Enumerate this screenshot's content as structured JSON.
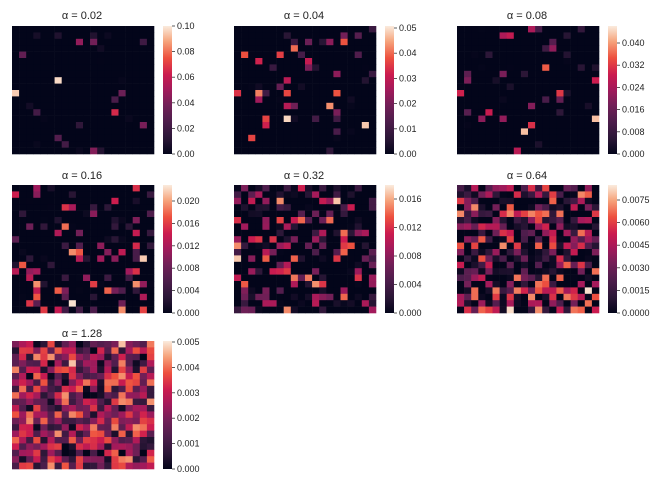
{
  "figure": {
    "panels": [
      {
        "title": "α = 0.02",
        "ticks": [
          "0.10",
          "0.08",
          "0.06",
          "0.04",
          "0.02",
          "0.00"
        ]
      },
      {
        "title": "α = 0.04",
        "ticks": [
          "0.05",
          "0.04",
          "0.03",
          "0.02",
          "0.01",
          "0.00"
        ]
      },
      {
        "title": "α = 0.08",
        "ticks": [
          "0.040",
          "0.032",
          "0.024",
          "0.016",
          "0.008",
          "0.000"
        ]
      },
      {
        "title": "α = 0.16",
        "ticks": [
          "0.020",
          "0.016",
          "0.012",
          "0.008",
          "0.004",
          "0.000"
        ]
      },
      {
        "title": "α = 0.32",
        "ticks": [
          "0.016",
          "0.012",
          "0.008",
          "0.004",
          "0.000"
        ]
      },
      {
        "title": "α = 0.64",
        "ticks": [
          "0.0075",
          "0.0060",
          "0.0045",
          "0.0030",
          "0.0015",
          "0.0000"
        ]
      },
      {
        "title": "α = 1.28",
        "ticks": [
          "0.005",
          "0.004",
          "0.003",
          "0.002",
          "0.001",
          "0.000"
        ]
      }
    ]
  },
  "chart_data": [
    {
      "type": "heatmap",
      "title": "α = 0.02",
      "grid_size": [
        20,
        20
      ],
      "vmin": 0.0,
      "vmax": 0.1,
      "colormap": "rocket",
      "colorbar_ticks": [
        0.1,
        0.08,
        0.06,
        0.04,
        0.02,
        0.0
      ],
      "density": 0.06,
      "sharpness": 2.2,
      "seed": 11
    },
    {
      "type": "heatmap",
      "title": "α = 0.04",
      "grid_size": [
        20,
        20
      ],
      "vmin": 0.0,
      "vmax": 0.05,
      "colormap": "rocket",
      "colorbar_ticks": [
        0.05,
        0.04,
        0.03,
        0.02,
        0.01,
        0.0
      ],
      "density": 0.08,
      "sharpness": 1.8,
      "seed": 23
    },
    {
      "type": "heatmap",
      "title": "α = 0.08",
      "grid_size": [
        20,
        20
      ],
      "vmin": 0.0,
      "vmax": 0.04,
      "colormap": "rocket",
      "colorbar_ticks": [
        0.04,
        0.032,
        0.024,
        0.016,
        0.008,
        0.0
      ],
      "density": 0.13,
      "sharpness": 1.7,
      "seed": 37
    },
    {
      "type": "heatmap",
      "title": "α = 0.16",
      "grid_size": [
        20,
        20
      ],
      "vmin": 0.0,
      "vmax": 0.02,
      "colormap": "rocket",
      "colorbar_ticks": [
        0.02,
        0.016,
        0.012,
        0.008,
        0.004,
        0.0
      ],
      "density": 0.25,
      "sharpness": 1.6,
      "seed": 41
    },
    {
      "type": "heatmap",
      "title": "α = 0.32",
      "grid_size": [
        20,
        20
      ],
      "vmin": 0.0,
      "vmax": 0.016,
      "colormap": "rocket",
      "colorbar_ticks": [
        0.016,
        0.012,
        0.008,
        0.004,
        0.0
      ],
      "density": 0.42,
      "sharpness": 1.6,
      "seed": 53
    },
    {
      "type": "heatmap",
      "title": "α = 0.64",
      "grid_size": [
        20,
        20
      ],
      "vmin": 0.0,
      "vmax": 0.0075,
      "colormap": "rocket",
      "colorbar_ticks": [
        0.0075,
        0.006,
        0.0045,
        0.003,
        0.0015,
        0.0
      ],
      "density": 0.72,
      "sharpness": 1.3,
      "seed": 67
    },
    {
      "type": "heatmap",
      "title": "α = 1.28",
      "grid_size": [
        20,
        20
      ],
      "vmin": 0.0,
      "vmax": 0.005,
      "colormap": "rocket",
      "colorbar_ticks": [
        0.005,
        0.004,
        0.003,
        0.002,
        0.001,
        0.0
      ],
      "density": 0.97,
      "sharpness": 0.9,
      "seed": 79
    }
  ]
}
